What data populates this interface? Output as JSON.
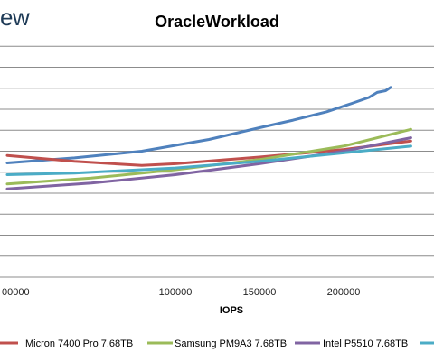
{
  "header": {
    "logo_text": "ew"
  },
  "chart_data": {
    "type": "line",
    "title": "OracleWorkload",
    "xlabel": "IOPS",
    "ylabel": "",
    "xlim": [
      0,
      240000
    ],
    "ylim": [
      0,
      300
    ],
    "x_ticks": [
      100000,
      150000,
      200000
    ],
    "x_tick_labels": [
      "100000",
      "150000",
      "200000"
    ],
    "first_tick_partial": "00000",
    "y_gridlines": [
      0,
      25,
      50,
      75,
      100,
      125,
      150,
      175,
      200,
      225,
      250,
      275,
      300
    ],
    "grid": true,
    "legend_position": "bottom",
    "series": [
      {
        "name": "",
        "color": "#4f81bd",
        "x": [
          0,
          40000,
          80000,
          120000,
          150000,
          170000,
          190000,
          205000,
          215000,
          220000,
          225000,
          228000
        ],
        "y": [
          136,
          142,
          150,
          164,
          178,
          187,
          197,
          207,
          214,
          220,
          222,
          226
        ]
      },
      {
        "name": "Micron 7400 Pro 7.68TB",
        "color": "#c0504d",
        "x": [
          0,
          40000,
          80000,
          100000,
          150000,
          200000,
          240000
        ],
        "y": [
          145,
          138,
          133,
          135,
          143,
          152,
          162
        ]
      },
      {
        "name": "Samsung PM9A3 7.68TB",
        "color": "#9bbb59",
        "x": [
          0,
          50000,
          100000,
          150000,
          200000,
          240000
        ],
        "y": [
          111,
          118,
          128,
          140,
          156,
          176
        ]
      },
      {
        "name": "Intel P5510 7.68TB",
        "color": "#8064a2",
        "x": [
          0,
          50000,
          100000,
          150000,
          200000,
          240000
        ],
        "y": [
          105,
          112,
          122,
          135,
          150,
          166
        ]
      },
      {
        "name": "",
        "color": "#4bacc6",
        "x": [
          0,
          40000,
          100000,
          150000,
          200000,
          240000
        ],
        "y": [
          122,
          124,
          130,
          138,
          148,
          156
        ]
      }
    ]
  }
}
